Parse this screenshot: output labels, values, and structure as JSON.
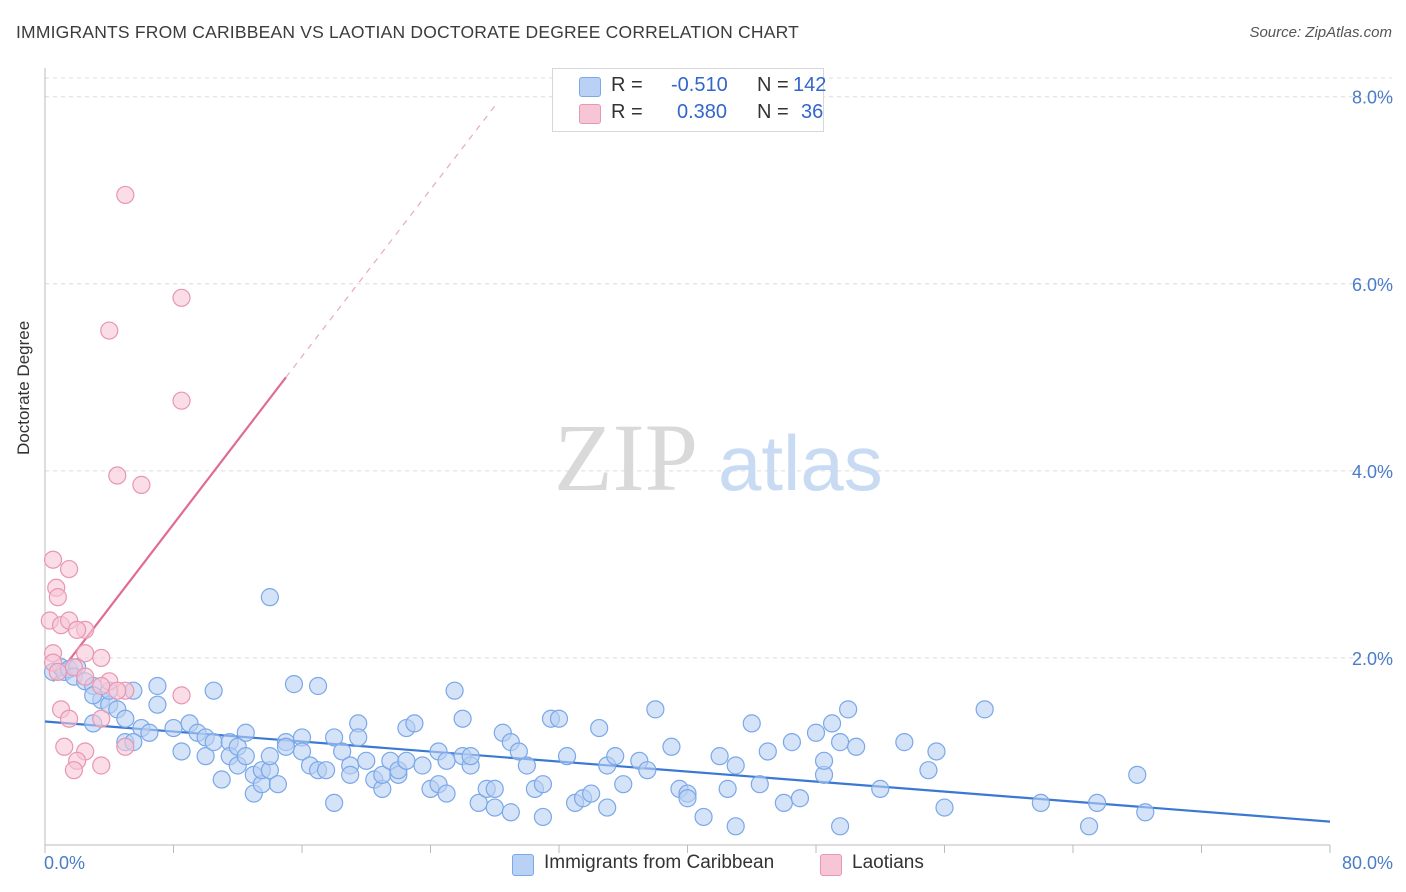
{
  "title": "IMMIGRANTS FROM CARIBBEAN VS LAOTIAN DOCTORATE DEGREE CORRELATION CHART",
  "source": "Source: ZipAtlas.com",
  "watermark": {
    "zip": "ZIP",
    "atlas": "atlas"
  },
  "legend": {
    "r_label": "R =",
    "n_label": "N =",
    "series": [
      {
        "name": "Immigrants from Caribbean",
        "r": "-0.510",
        "n": "142",
        "color": "#7aa8e8",
        "fill": "#b9d1f4"
      },
      {
        "name": "Laotians",
        "r": "0.380",
        "n": "36",
        "color": "#e896b2",
        "fill": "#f7c6d6"
      }
    ]
  },
  "chart_data": {
    "type": "scatter",
    "title": "IMMIGRANTS FROM CARIBBEAN VS LAOTIAN DOCTORATE DEGREE CORRELATION CHART",
    "xlabel": "",
    "ylabel": "Doctorate Degree",
    "xlim": [
      0,
      80
    ],
    "ylim": [
      0,
      8.2
    ],
    "x_tick_labels": [
      "0.0%",
      "80.0%"
    ],
    "y_ticks": [
      2,
      4,
      6,
      8
    ],
    "y_tick_labels": [
      "2.0%",
      "4.0%",
      "6.0%",
      "8.0%"
    ],
    "grid": true,
    "legend_position": "top-center",
    "series": [
      {
        "name": "Immigrants from Caribbean",
        "color": "#3a78d4",
        "trendline": {
          "x": [
            0,
            80
          ],
          "y": [
            1.32,
            0.25
          ]
        },
        "points": [
          [
            0.5,
            1.85
          ],
          [
            1.0,
            1.9
          ],
          [
            1.2,
            1.85
          ],
          [
            1.5,
            1.88
          ],
          [
            2.0,
            1.9
          ],
          [
            1.8,
            1.8
          ],
          [
            2.5,
            1.75
          ],
          [
            3.0,
            1.7
          ],
          [
            3.5,
            1.55
          ],
          [
            3.0,
            1.6
          ],
          [
            4.0,
            1.5
          ],
          [
            4.5,
            1.45
          ],
          [
            5.0,
            1.35
          ],
          [
            4.0,
            1.65
          ],
          [
            5.5,
            1.65
          ],
          [
            6.0,
            1.25
          ],
          [
            5.0,
            1.1
          ],
          [
            5.5,
            1.1
          ],
          [
            6.5,
            1.2
          ],
          [
            7.0,
            1.5
          ],
          [
            7.0,
            1.7
          ],
          [
            8.0,
            1.25
          ],
          [
            8.5,
            1.0
          ],
          [
            9.0,
            1.3
          ],
          [
            9.5,
            1.2
          ],
          [
            10.0,
            0.95
          ],
          [
            10.0,
            1.15
          ],
          [
            10.5,
            1.65
          ],
          [
            10.5,
            1.1
          ],
          [
            11.0,
            0.7
          ],
          [
            11.5,
            1.1
          ],
          [
            11.5,
            0.95
          ],
          [
            12.0,
            0.85
          ],
          [
            12.0,
            1.05
          ],
          [
            12.5,
            1.2
          ],
          [
            12.5,
            0.95
          ],
          [
            13.0,
            0.75
          ],
          [
            13.0,
            0.55
          ],
          [
            13.5,
            0.65
          ],
          [
            13.5,
            0.8
          ],
          [
            14.0,
            0.8
          ],
          [
            14.0,
            0.95
          ],
          [
            14.5,
            0.65
          ],
          [
            15.0,
            1.1
          ],
          [
            15.0,
            1.05
          ],
          [
            14.0,
            2.65
          ],
          [
            15.5,
            1.72
          ],
          [
            16.0,
            1.15
          ],
          [
            16.0,
            1.0
          ],
          [
            16.5,
            0.85
          ],
          [
            17.0,
            1.7
          ],
          [
            17.0,
            0.8
          ],
          [
            17.5,
            0.8
          ],
          [
            18.0,
            0.45
          ],
          [
            18.0,
            1.15
          ],
          [
            18.5,
            1.0
          ],
          [
            19.0,
            0.85
          ],
          [
            19.0,
            0.75
          ],
          [
            19.5,
            1.3
          ],
          [
            19.5,
            1.15
          ],
          [
            20.0,
            0.9
          ],
          [
            20.5,
            0.7
          ],
          [
            21.0,
            0.6
          ],
          [
            21.0,
            0.75
          ],
          [
            21.5,
            0.9
          ],
          [
            22.0,
            0.75
          ],
          [
            22.0,
            0.8
          ],
          [
            22.5,
            1.25
          ],
          [
            22.5,
            0.9
          ],
          [
            23.0,
            1.3
          ],
          [
            23.5,
            0.85
          ],
          [
            24.0,
            0.6
          ],
          [
            24.5,
            0.65
          ],
          [
            24.5,
            1.0
          ],
          [
            25.0,
            0.9
          ],
          [
            25.0,
            0.55
          ],
          [
            25.5,
            1.65
          ],
          [
            26.0,
            1.35
          ],
          [
            26.0,
            0.95
          ],
          [
            26.5,
            0.85
          ],
          [
            26.5,
            0.95
          ],
          [
            27.0,
            0.45
          ],
          [
            27.5,
            0.6
          ],
          [
            28.0,
            0.6
          ],
          [
            28.0,
            0.4
          ],
          [
            28.5,
            1.2
          ],
          [
            29.0,
            1.1
          ],
          [
            29.0,
            0.35
          ],
          [
            29.5,
            1.0
          ],
          [
            30.0,
            0.85
          ],
          [
            30.5,
            0.6
          ],
          [
            31.0,
            0.65
          ],
          [
            31.0,
            0.3
          ],
          [
            31.5,
            1.35
          ],
          [
            32.0,
            1.35
          ],
          [
            32.5,
            0.95
          ],
          [
            33.0,
            0.45
          ],
          [
            33.5,
            0.5
          ],
          [
            34.0,
            0.55
          ],
          [
            34.5,
            1.25
          ],
          [
            35.0,
            0.4
          ],
          [
            35.0,
            0.85
          ],
          [
            35.5,
            0.95
          ],
          [
            36.0,
            0.65
          ],
          [
            37.0,
            0.9
          ],
          [
            37.5,
            0.8
          ],
          [
            38.0,
            1.45
          ],
          [
            39.0,
            1.05
          ],
          [
            39.5,
            0.6
          ],
          [
            40.0,
            0.55
          ],
          [
            40.0,
            0.5
          ],
          [
            41.0,
            0.3
          ],
          [
            42.0,
            0.95
          ],
          [
            42.5,
            0.6
          ],
          [
            43.0,
            0.2
          ],
          [
            43.0,
            0.85
          ],
          [
            44.0,
            1.3
          ],
          [
            44.5,
            0.65
          ],
          [
            45.0,
            1.0
          ],
          [
            46.0,
            0.45
          ],
          [
            46.5,
            1.1
          ],
          [
            47.0,
            0.5
          ],
          [
            48.0,
            1.2
          ],
          [
            48.5,
            0.75
          ],
          [
            48.5,
            0.9
          ],
          [
            49.0,
            1.3
          ],
          [
            49.5,
            0.2
          ],
          [
            49.5,
            1.1
          ],
          [
            50.0,
            1.45
          ],
          [
            50.5,
            1.05
          ],
          [
            52.0,
            0.6
          ],
          [
            53.5,
            1.1
          ],
          [
            55.0,
            0.8
          ],
          [
            55.5,
            1.0
          ],
          [
            56.0,
            0.4
          ],
          [
            58.5,
            1.45
          ],
          [
            62.0,
            0.45
          ],
          [
            65.5,
            0.45
          ],
          [
            65.0,
            0.2
          ],
          [
            68.0,
            0.75
          ],
          [
            68.5,
            0.35
          ],
          [
            3.0,
            1.3
          ]
        ]
      },
      {
        "name": "Laotians",
        "color": "#e06b96",
        "trendline": {
          "x": [
            0.5,
            15.0
          ],
          "y": [
            1.75,
            5.0
          ]
        },
        "trendline_dashed": {
          "x": [
            15.0,
            28.0
          ],
          "y": [
            5.0,
            7.9
          ]
        },
        "points": [
          [
            5.0,
            6.95
          ],
          [
            8.5,
            5.85
          ],
          [
            4.0,
            5.5
          ],
          [
            8.5,
            4.75
          ],
          [
            4.5,
            3.95
          ],
          [
            6.0,
            3.85
          ],
          [
            0.5,
            3.05
          ],
          [
            1.5,
            2.95
          ],
          [
            0.7,
            2.75
          ],
          [
            0.8,
            2.65
          ],
          [
            0.3,
            2.4
          ],
          [
            1.0,
            2.35
          ],
          [
            1.5,
            2.4
          ],
          [
            2.5,
            2.3
          ],
          [
            2.0,
            2.3
          ],
          [
            0.5,
            2.05
          ],
          [
            2.5,
            2.05
          ],
          [
            3.5,
            2.0
          ],
          [
            0.5,
            1.95
          ],
          [
            1.8,
            1.9
          ],
          [
            0.8,
            1.85
          ],
          [
            2.5,
            1.8
          ],
          [
            4.0,
            1.75
          ],
          [
            3.5,
            1.7
          ],
          [
            5.0,
            1.65
          ],
          [
            4.5,
            1.65
          ],
          [
            8.5,
            1.6
          ],
          [
            1.0,
            1.45
          ],
          [
            1.5,
            1.35
          ],
          [
            3.5,
            1.35
          ],
          [
            1.2,
            1.05
          ],
          [
            2.5,
            1.0
          ],
          [
            5.0,
            1.05
          ],
          [
            2.0,
            0.9
          ],
          [
            1.8,
            0.8
          ],
          [
            3.5,
            0.85
          ]
        ]
      }
    ]
  }
}
